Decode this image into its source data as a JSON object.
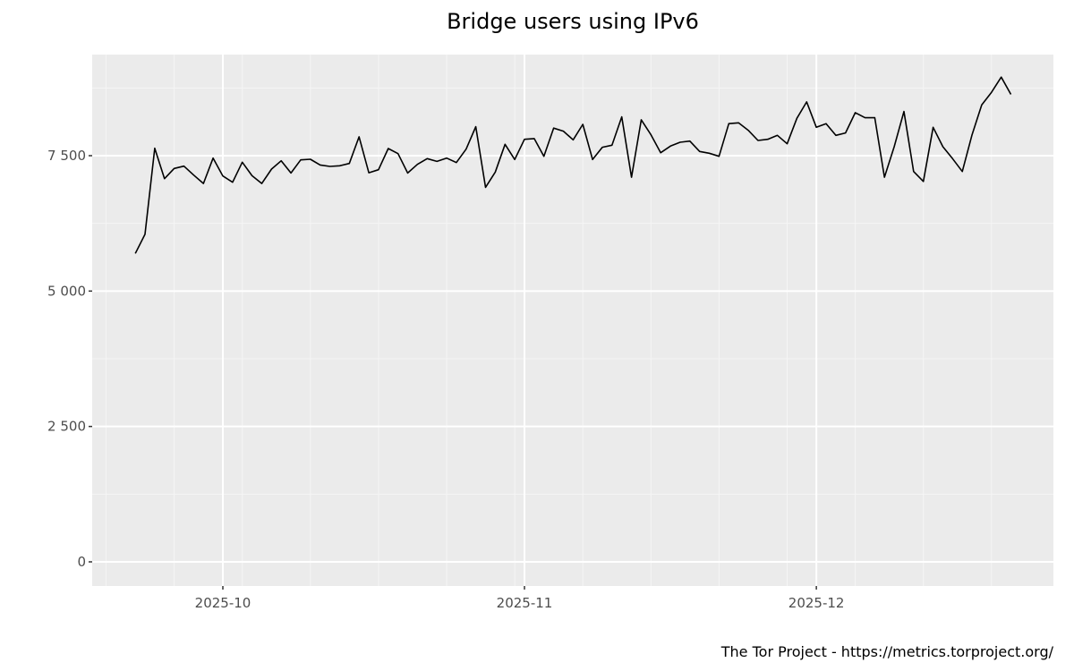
{
  "chart_data": {
    "type": "line",
    "title": "Bridge users using IPv6",
    "xlabel": "",
    "ylabel": "",
    "caption": "The Tor Project - https://metrics.torproject.org/",
    "ylim": [
      -400,
      9450
    ],
    "y_ticks": [
      0,
      2500,
      5000,
      7500
    ],
    "y_tick_labels": [
      "0",
      "2 500",
      "5 000",
      "7 500"
    ],
    "y_minor_ticks": [
      1250,
      3750,
      6250,
      8750
    ],
    "x_tick_labels": [
      "2025-10",
      "2025-11",
      "2025-12"
    ],
    "x_tick_dates": [
      "2025-10-01",
      "2025-11-01",
      "2025-12-01"
    ],
    "grid": true,
    "legend": "none",
    "x_start": "2025-09-22",
    "x_end": "2025-12-21",
    "series": [
      {
        "name": "Bridge users using IPv6",
        "color": "#000000",
        "x": [
          "2025-09-22",
          "2025-09-23",
          "2025-09-24",
          "2025-09-25",
          "2025-09-26",
          "2025-09-27",
          "2025-09-28",
          "2025-09-29",
          "2025-09-30",
          "2025-10-01",
          "2025-10-02",
          "2025-10-03",
          "2025-10-04",
          "2025-10-05",
          "2025-10-06",
          "2025-10-07",
          "2025-10-08",
          "2025-10-09",
          "2025-10-10",
          "2025-10-11",
          "2025-10-12",
          "2025-10-13",
          "2025-10-14",
          "2025-10-15",
          "2025-10-16",
          "2025-10-17",
          "2025-10-18",
          "2025-10-19",
          "2025-10-20",
          "2025-10-21",
          "2025-10-22",
          "2025-10-23",
          "2025-10-24",
          "2025-10-25",
          "2025-10-26",
          "2025-10-27",
          "2025-10-28",
          "2025-10-29",
          "2025-10-30",
          "2025-10-31",
          "2025-11-01",
          "2025-11-02",
          "2025-11-03",
          "2025-11-04",
          "2025-11-05",
          "2025-11-06",
          "2025-11-07",
          "2025-11-08",
          "2025-11-09",
          "2025-11-10",
          "2025-11-11",
          "2025-11-12",
          "2025-11-13",
          "2025-11-14",
          "2025-11-15",
          "2025-11-16",
          "2025-11-17",
          "2025-11-18",
          "2025-11-19",
          "2025-11-20",
          "2025-11-21",
          "2025-11-22",
          "2025-11-23",
          "2025-11-24",
          "2025-11-25",
          "2025-11-26",
          "2025-11-27",
          "2025-11-28",
          "2025-11-29",
          "2025-11-30",
          "2025-12-01",
          "2025-12-02",
          "2025-12-03",
          "2025-12-04",
          "2025-12-05",
          "2025-12-06",
          "2025-12-07",
          "2025-12-08",
          "2025-12-09",
          "2025-12-10",
          "2025-12-11",
          "2025-12-12",
          "2025-12-13",
          "2025-12-14",
          "2025-12-15",
          "2025-12-16",
          "2025-12-17",
          "2025-12-18",
          "2025-12-19",
          "2025-12-20",
          "2025-12-21"
        ],
        "values": [
          5695,
          6048,
          7637,
          7075,
          7263,
          7306,
          7141,
          6987,
          7455,
          7125,
          7009,
          7379,
          7130,
          6987,
          7252,
          7406,
          7180,
          7422,
          7434,
          7329,
          7301,
          7313,
          7357,
          7848,
          7185,
          7241,
          7632,
          7538,
          7180,
          7340,
          7445,
          7395,
          7455,
          7373,
          7621,
          8035,
          6916,
          7197,
          7710,
          7429,
          7803,
          7815,
          7489,
          8008,
          7952,
          7792,
          8079,
          7429,
          7655,
          7693,
          8217,
          7102,
          8162,
          7886,
          7555,
          7677,
          7748,
          7770,
          7577,
          7544,
          7489,
          8091,
          8107,
          7969,
          7781,
          7803,
          7875,
          7720,
          8190,
          8493,
          8024,
          8091,
          7875,
          7919,
          8295,
          8200,
          8200,
          7102,
          7666,
          8316,
          7207,
          7025,
          8024,
          7666,
          7445,
          7207,
          7886,
          8439,
          8670,
          8950,
          8632
        ]
      }
    ]
  },
  "style": {
    "panel_bg": "#ebebeb",
    "grid_major": "#ffffff",
    "grid_minor": "#f5f5f5",
    "line_color": "#000000",
    "tick_color": "#333333",
    "tick_label_color": "#4d4d4d"
  }
}
